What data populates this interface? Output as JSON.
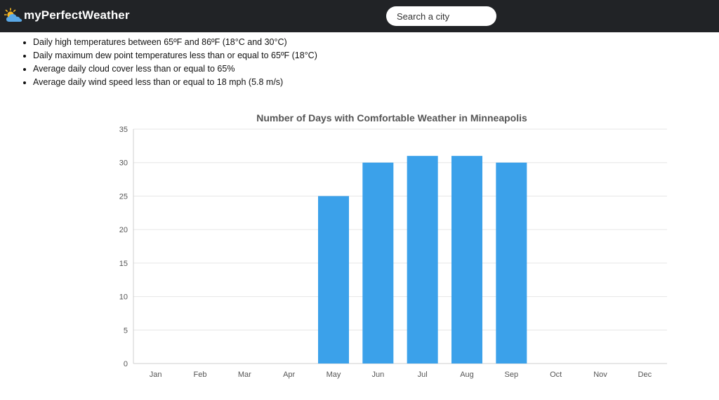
{
  "header": {
    "brand": "myPerfectWeather",
    "logo_icon": "sun-cloud-icon",
    "search_placeholder": "Search a city",
    "background": "#212326"
  },
  "criteria": [
    "Daily high temperatures between 65ºF and 86ºF (18°C and 30°C)",
    "Daily maximum dew point temperatures less than or equal to 65ºF (18°C)",
    "Average daily cloud cover less than or equal to 65%",
    "Average daily wind speed less than or equal to 18 mph (5.8 m/s)"
  ],
  "chart_data": {
    "type": "bar",
    "title": "Number of Days with Comfortable Weather in Minneapolis",
    "categories": [
      "Jan",
      "Feb",
      "Mar",
      "Apr",
      "May",
      "Jun",
      "Jul",
      "Aug",
      "Sep",
      "Oct",
      "Nov",
      "Dec"
    ],
    "values": [
      0,
      0,
      0,
      0,
      25,
      30,
      31,
      31,
      30,
      0,
      0,
      0
    ],
    "ylim": [
      0,
      35
    ],
    "yticks": [
      0,
      5,
      10,
      15,
      20,
      25,
      30,
      35
    ],
    "xlabel": "",
    "ylabel": "",
    "grid": true,
    "bar_color": "#3ba1ea"
  }
}
